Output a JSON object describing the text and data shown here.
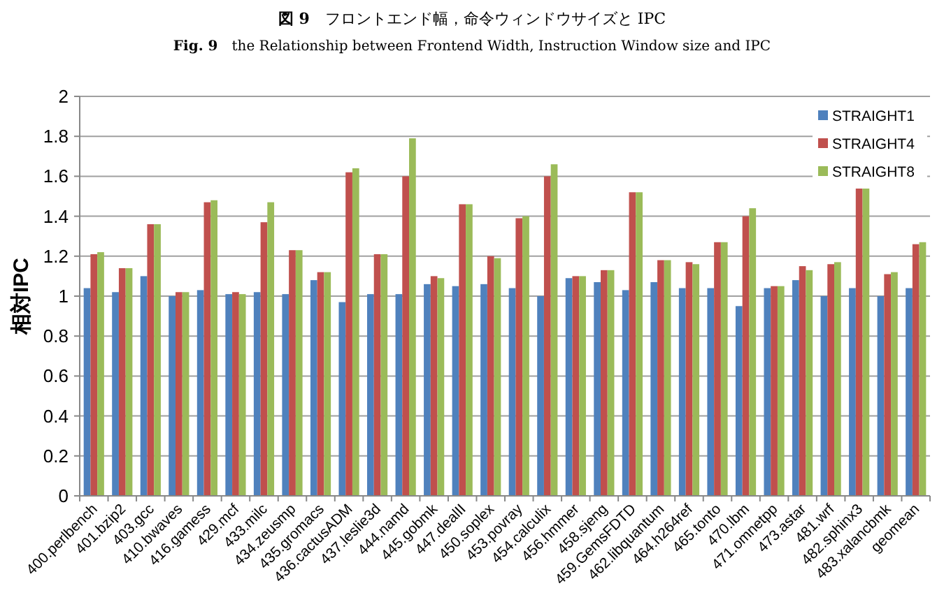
{
  "chart_data": {
    "type": "bar",
    "title": "**図 9**　フロントエンド幅，命令ウィンドウサイズと IPC",
    "subtitle": "**Fig. 9**　the Relationship between Frontend Width, Instruction Window size and IPC",
    "ylabel": "相対IPC",
    "categories": [
      "400.perlbench",
      "401.bzip2",
      "403.gcc",
      "410.bwaves",
      "416.gamess",
      "429.mcf",
      "433.milc",
      "434.zeusmp",
      "435.gromacs",
      "436.cactusADM",
      "437.leslie3d",
      "444.namd",
      "445.gobmk",
      "447.dealII",
      "450.soplex",
      "453.povray",
      "454.calculix",
      "456.hmmer",
      "458.sjeng",
      "459.GemsFDTD",
      "462.libquantum",
      "464.h264ref",
      "465.tonto",
      "470.lbm",
      "471.omnetpp",
      "473.astar",
      "481.wrf",
      "482.sphinx3",
      "483.xalancbmk",
      "geomean"
    ],
    "series": [
      {
        "name": "STRAIGHT1",
        "color": "#4f81bd",
        "values": [
          1.04,
          1.02,
          1.1,
          1.0,
          1.03,
          1.01,
          1.02,
          1.01,
          1.08,
          0.97,
          1.01,
          1.01,
          1.06,
          1.05,
          1.06,
          1.04,
          1.0,
          1.09,
          1.07,
          1.03,
          1.07,
          1.04,
          1.04,
          0.95,
          1.04,
          1.08,
          1.0,
          1.04,
          1.0,
          1.04
        ]
      },
      {
        "name": "STRAIGHT4",
        "color": "#c0504d",
        "values": [
          1.21,
          1.14,
          1.36,
          1.02,
          1.47,
          1.02,
          1.37,
          1.23,
          1.12,
          1.62,
          1.21,
          1.6,
          1.1,
          1.46,
          1.2,
          1.39,
          1.6,
          1.1,
          1.13,
          1.52,
          1.18,
          1.17,
          1.27,
          1.4,
          1.05,
          1.15,
          1.16,
          1.54,
          1.11,
          1.26
        ]
      },
      {
        "name": "STRAIGHT8",
        "color": "#9bbb59",
        "values": [
          1.22,
          1.14,
          1.36,
          1.02,
          1.48,
          1.01,
          1.47,
          1.23,
          1.12,
          1.64,
          1.21,
          1.79,
          1.09,
          1.46,
          1.19,
          1.4,
          1.66,
          1.1,
          1.13,
          1.52,
          1.18,
          1.16,
          1.27,
          1.44,
          1.05,
          1.13,
          1.17,
          1.55,
          1.12,
          1.27
        ]
      }
    ],
    "ylim": [
      0,
      2
    ],
    "yticks": [
      0,
      0.2,
      0.4,
      0.6,
      0.8,
      1,
      1.2,
      1.4,
      1.6,
      1.8,
      2
    ],
    "grid": "y",
    "legend": "top right"
  }
}
